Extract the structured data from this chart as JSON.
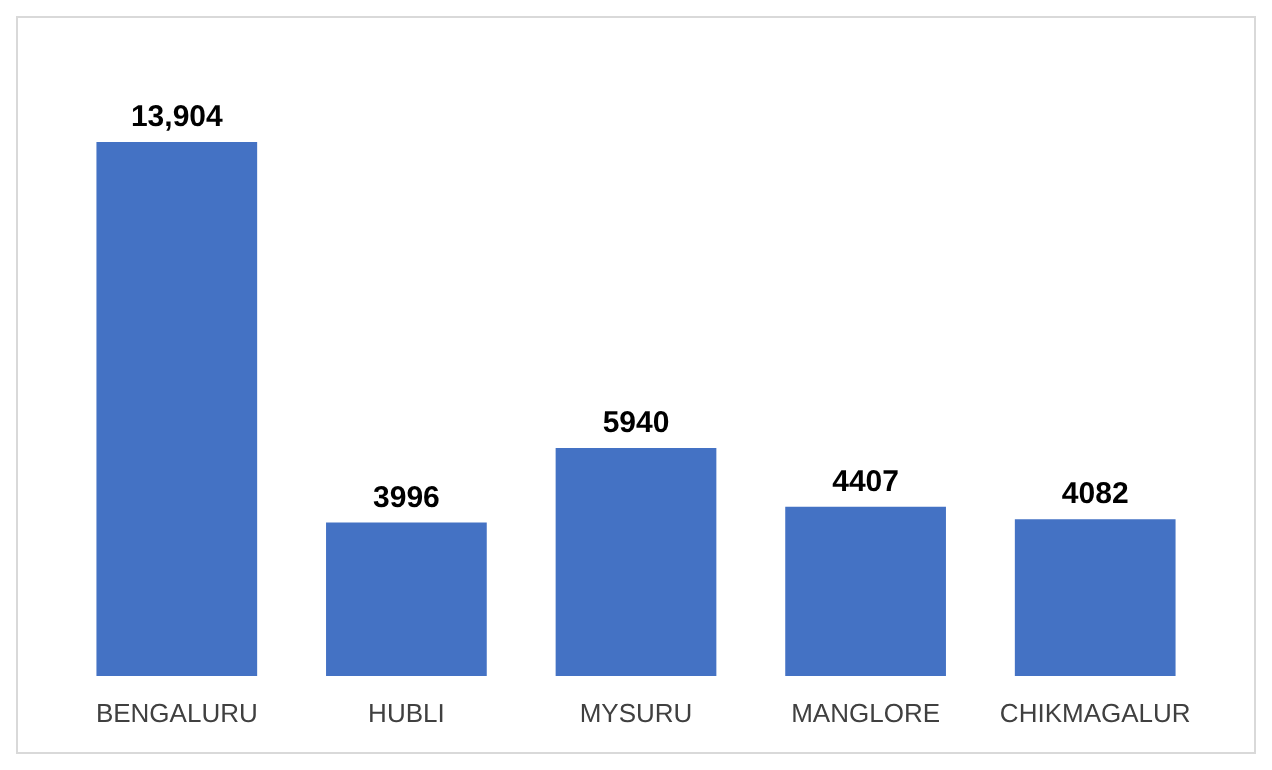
{
  "chart_data": {
    "type": "bar",
    "categories": [
      "BENGALURU",
      "HUBLI",
      "MYSURU",
      "MANGLORE",
      "CHIKMAGALUR"
    ],
    "values": [
      13904,
      3996,
      5940,
      4407,
      4082
    ],
    "value_labels": [
      "13,904",
      "3996",
      "5940",
      "4407",
      "4082"
    ],
    "color": "#4472c4"
  }
}
